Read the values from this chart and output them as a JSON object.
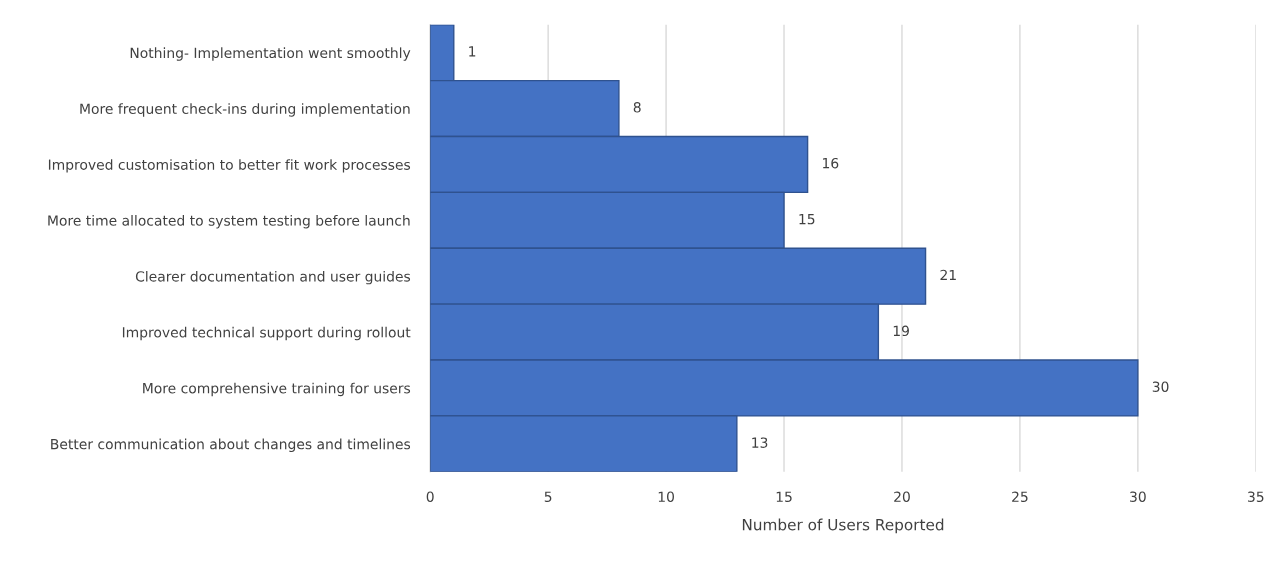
{
  "chart_data": {
    "type": "bar",
    "orientation": "horizontal",
    "xlabel": "Number of Users Reported",
    "categories": [
      "Nothing- Implementation went smoothly",
      "More frequent check-ins during implementation",
      "Improved customisation to better fit work processes",
      "More time allocated to system testing before launch",
      "Clearer documentation and user guides",
      "Improved technical support during rollout",
      "More comprehensive training for users",
      "Better communication about changes and timelines"
    ],
    "values": [
      1,
      8,
      16,
      15,
      21,
      19,
      30,
      13
    ],
    "color": "#4472c4",
    "xlim": [
      0,
      35
    ],
    "xticks": [
      0,
      5,
      10,
      15,
      20,
      25,
      30,
      35
    ],
    "grid": "x",
    "data_labels": true
  }
}
